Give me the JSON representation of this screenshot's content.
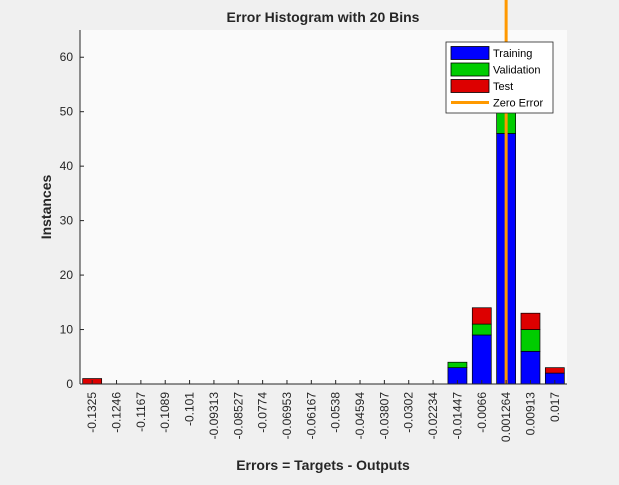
{
  "chart_data": {
    "type": "bar",
    "stacked": true,
    "title": "Error Histogram with 20 Bins",
    "xlabel": "Errors = Targets - Outputs",
    "ylabel": "Instances",
    "ylim": [
      0,
      65
    ],
    "yticks": [
      0,
      10,
      20,
      30,
      40,
      50,
      60
    ],
    "categories": [
      "-0.1325",
      "-0.1246",
      "-0.1167",
      "-0.1089",
      "-0.101",
      "-0.09313",
      "-0.08527",
      "-0.0774",
      "-0.06953",
      "-0.06167",
      "-0.0538",
      "-0.04594",
      "-0.03807",
      "-0.0302",
      "-0.02234",
      "-0.01447",
      "-0.0066",
      "0.001264",
      "0.00913",
      "0.017"
    ],
    "series": [
      {
        "name": "Training",
        "color": "#0000ff",
        "values": [
          0,
          0,
          0,
          0,
          0,
          0,
          0,
          0,
          0,
          0,
          0,
          0,
          0,
          0,
          0,
          3,
          9,
          46,
          6,
          2
        ]
      },
      {
        "name": "Validation",
        "color": "#00cc00",
        "values": [
          0,
          0,
          0,
          0,
          0,
          0,
          0,
          0,
          0,
          0,
          0,
          0,
          0,
          0,
          0,
          1,
          2,
          4,
          4,
          0
        ]
      },
      {
        "name": "Test",
        "color": "#dd0000",
        "values": [
          1,
          0,
          0,
          0,
          0,
          0,
          0,
          0,
          0,
          0,
          0,
          0,
          0,
          0,
          0,
          0,
          3,
          5,
          3,
          1
        ]
      }
    ],
    "zero_error": {
      "name": "Zero Error",
      "color": "#ff9900",
      "x_category_index": 17
    },
    "legend_position": "top-right",
    "grid": false
  }
}
